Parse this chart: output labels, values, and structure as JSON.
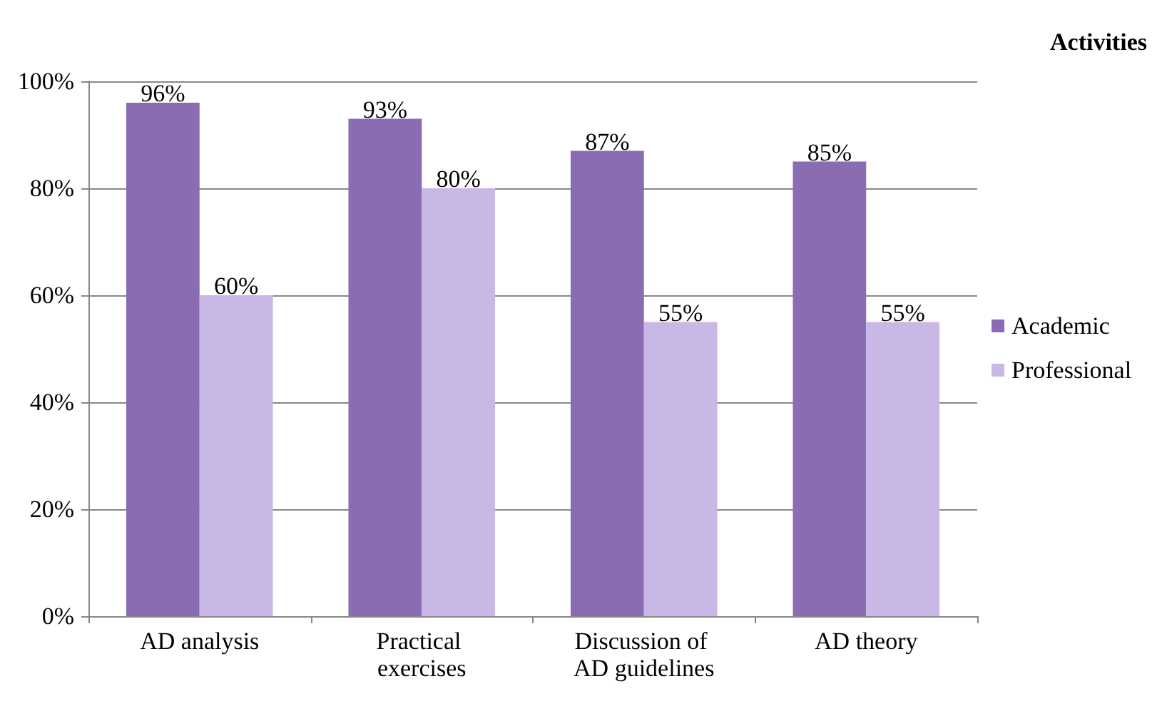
{
  "chart_data": {
    "type": "bar",
    "legend_title": "Activities",
    "categories": [
      "AD analysis",
      "Practical exercises",
      "Discussion of AD guidelines",
      "AD theory"
    ],
    "series": [
      {
        "name": "Academic",
        "color": "#8a6cb3",
        "values": [
          96,
          93,
          87,
          85
        ],
        "value_labels": [
          "96%",
          "93%",
          "87%",
          "85%"
        ]
      },
      {
        "name": "Professional",
        "color": "#c9b8e6",
        "values": [
          60,
          80,
          55,
          55
        ],
        "value_labels": [
          "60%",
          "80%",
          "55%",
          "55%"
        ]
      }
    ],
    "ylim": [
      0,
      100
    ],
    "yticks": [
      {
        "value": 0,
        "label": "0%"
      },
      {
        "value": 20,
        "label": "20%"
      },
      {
        "value": 40,
        "label": "40%"
      },
      {
        "value": 60,
        "label": "60%"
      },
      {
        "value": 80,
        "label": "80%"
      },
      {
        "value": 100,
        "label": "100%"
      }
    ],
    "grid": "y",
    "legend": "right"
  }
}
